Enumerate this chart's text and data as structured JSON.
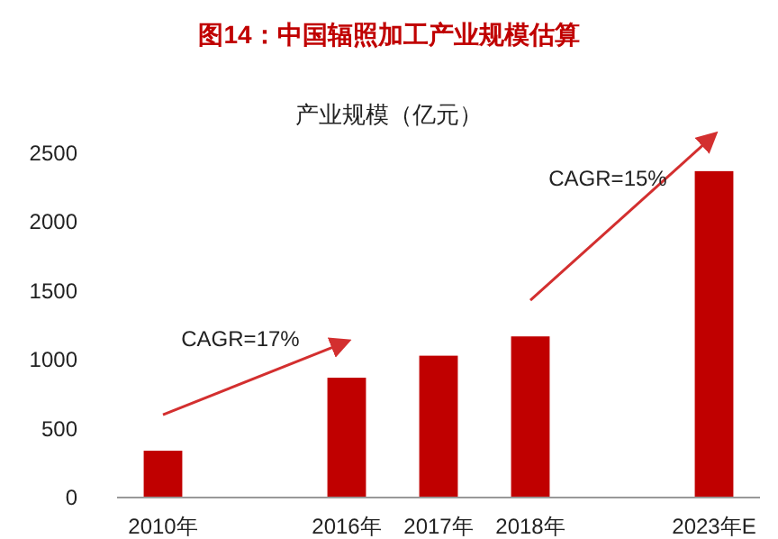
{
  "chart_data": {
    "type": "bar",
    "title": "图14：中国辐照加工产业规模估算",
    "subtitle": "产业规模（亿元）",
    "categories": [
      "2010年",
      null,
      "2016年",
      "2017年",
      "2018年",
      null,
      "2023年E"
    ],
    "values": [
      340,
      null,
      870,
      1030,
      1170,
      null,
      2370
    ],
    "color": "#c00000",
    "ylim": [
      0,
      2500
    ],
    "yticks": [
      0,
      500,
      1000,
      1500,
      2000,
      2500
    ],
    "grid": false,
    "annotations": [
      "CAGR=17%",
      "CAGR=15%"
    ]
  }
}
